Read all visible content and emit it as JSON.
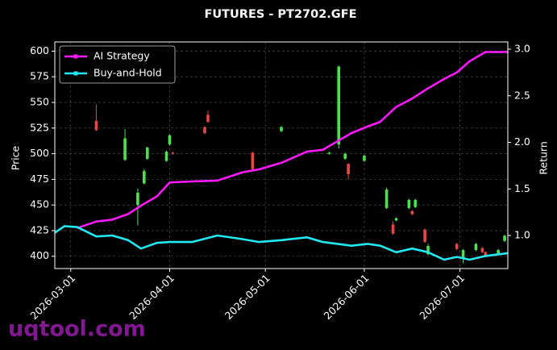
{
  "chart_data": {
    "type": "candlestick",
    "title": "FUTURES - PT2702.GFE",
    "ylabel": "Price",
    "y2label": "Return",
    "watermark": "uqtool.com",
    "legend": "upper left",
    "grid": true,
    "xlim": [
      "2026-02-24",
      "2026-07-16"
    ],
    "xticks": [
      "2026-03-01",
      "2026-04-01",
      "2026-05-01",
      "2026-06-01",
      "2026-07-01"
    ],
    "ylim": [
      388,
      609
    ],
    "yticks": [
      400,
      425,
      450,
      475,
      500,
      525,
      550,
      575,
      600
    ],
    "y2lim": [
      0.645,
      3.078
    ],
    "y2ticks": [
      {
        "value": 1,
        "label": "1.0"
      },
      1.5,
      {
        "value": 2,
        "label": "2.0"
      },
      2.5,
      {
        "value": 3,
        "label": "3.0"
      }
    ],
    "up_color": "#4ee04e",
    "down_color": "#e84545",
    "ohlc": {
      "x": [
        "2026-03-09",
        "2026-03-18",
        "2026-03-22",
        "2026-03-24",
        "2026-03-25",
        "2026-03-31",
        "2026-04-01",
        "2026-04-02",
        "2026-04-12",
        "2026-04-13",
        "2026-04-27",
        "2026-05-06",
        "2026-05-21",
        "2026-05-24",
        "2026-05-26",
        "2026-05-27",
        "2026-06-01",
        "2026-06-08",
        "2026-06-10",
        "2026-06-11",
        "2026-06-15",
        "2026-06-16",
        "2026-06-17",
        "2026-06-20",
        "2026-06-21",
        "2026-06-30",
        "2026-07-02",
        "2026-07-06",
        "2026-07-08",
        "2026-07-09",
        "2026-07-13",
        "2026-07-15"
      ],
      "open": [
        532,
        494,
        450,
        471,
        495,
        493,
        509,
        501,
        526,
        538,
        501,
        522,
        500,
        509,
        495,
        490,
        493,
        447,
        431,
        435,
        447,
        444,
        448,
        426,
        402,
        412,
        398,
        406,
        408,
        404,
        402,
        415
      ],
      "close": [
        523,
        515,
        462,
        483,
        506,
        502,
        518,
        500,
        520,
        531,
        485,
        526,
        501,
        585,
        500,
        480,
        498,
        465,
        422,
        437,
        455,
        441,
        455,
        414,
        410,
        407,
        406,
        412,
        404,
        400,
        406,
        420
      ],
      "high": [
        548,
        524,
        466,
        485,
        507,
        503,
        519,
        502,
        527,
        542,
        502,
        527,
        502,
        586,
        501,
        491,
        499,
        467,
        434,
        438,
        456,
        445,
        456,
        427,
        412,
        413,
        407,
        413,
        409,
        405,
        407,
        421
      ],
      "low": [
        522,
        493,
        430,
        470,
        494,
        492,
        508,
        499,
        519,
        530,
        484,
        521,
        499,
        505,
        494,
        475,
        492,
        446,
        421,
        434,
        446,
        440,
        447,
        413,
        401,
        406,
        393,
        405,
        403,
        399,
        401,
        414
      ]
    },
    "x": [
      "2026-02-24",
      "2026-02-27",
      "2026-03-03",
      "2026-03-09",
      "2026-03-14",
      "2026-03-19",
      "2026-03-23",
      "2026-03-28",
      "2026-04-01",
      "2026-04-08",
      "2026-04-16",
      "2026-04-24",
      "2026-04-29",
      "2026-05-06",
      "2026-05-14",
      "2026-05-19",
      "2026-05-28",
      "2026-06-02",
      "2026-06-06",
      "2026-06-11",
      "2026-06-16",
      "2026-06-21",
      "2026-06-26",
      "2026-06-30",
      "2026-07-04",
      "2026-07-09",
      "2026-07-16"
    ],
    "series": [
      {
        "name": "AI Strategy",
        "color": "#ff1aff",
        "axis": "y2",
        "values": [
          null,
          null,
          1.08,
          1.15,
          1.17,
          1.23,
          1.32,
          1.42,
          1.57,
          1.58,
          1.59,
          1.68,
          1.71,
          1.78,
          1.9,
          1.92,
          2.1,
          2.17,
          2.22,
          2.38,
          2.47,
          2.58,
          2.68,
          2.75,
          2.87,
          2.97,
          2.97
        ]
      },
      {
        "name": "Buy-and-Hold",
        "color": "#22e8f2",
        "axis": "y2",
        "values": [
          1.03,
          1.1,
          1.09,
          0.99,
          1.0,
          0.95,
          0.86,
          0.92,
          0.93,
          0.93,
          1.0,
          0.96,
          0.93,
          0.95,
          0.98,
          0.93,
          0.89,
          0.91,
          0.89,
          0.82,
          0.86,
          0.82,
          0.74,
          0.77,
          0.74,
          0.78,
          0.81
        ]
      }
    ]
  }
}
